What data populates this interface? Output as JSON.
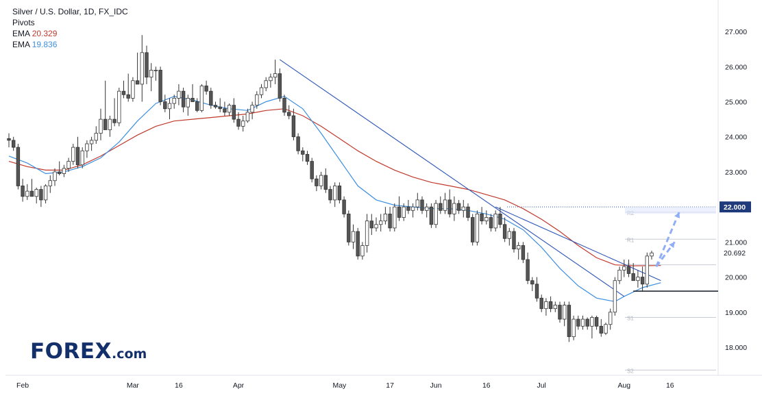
{
  "chart_data": {
    "type": "candlestick",
    "title": "Silver / U.S. Dollar, 1D, FX_IDC",
    "indicators": {
      "pivots_label": "Pivots",
      "ema_fast": {
        "label": "EMA",
        "value": "20.329",
        "color": "#c0392b"
      },
      "ema_slow": {
        "label": "EMA",
        "value": "19.836",
        "color": "#3d8fe0"
      }
    },
    "ylim": [
      17.2,
      27.9
    ],
    "y_ticks": [
      "18.000",
      "19.000",
      "20.000",
      "21.000",
      "22.000",
      "23.000",
      "24.000",
      "25.000",
      "26.000",
      "27.000"
    ],
    "x_ticks": [
      "Feb",
      "Mar",
      "16",
      "Apr",
      "May",
      "17",
      "Jun",
      "16",
      "Jul",
      "Aug",
      "16"
    ],
    "x_tick_index": [
      3,
      27,
      37,
      50,
      72,
      83,
      93,
      104,
      116,
      134,
      144
    ],
    "last_price": "20.692",
    "target_level": "22.000",
    "pivot_levels": [
      {
        "label": "R2",
        "value": 21.85
      },
      {
        "label": "R1",
        "value": 21.08
      },
      {
        "label": "P",
        "value": 20.35
      },
      {
        "label": "S1",
        "value": 18.85
      },
      {
        "label": "S2",
        "value": 17.35
      }
    ],
    "support_level": 19.6,
    "colors": {
      "up": "#ffffff",
      "down": "#555555",
      "wick": "#333333",
      "ema_fast": "#c0392b",
      "ema_slow": "#3d8fe0",
      "trendline": "#2c55b8",
      "target_label_bg": "#1f3a7a",
      "forecast_arrow": "#90aef5"
    },
    "candles": [
      [
        23.95,
        24.1,
        23.7,
        23.9
      ],
      [
        23.9,
        24.0,
        23.6,
        23.7
      ],
      [
        23.7,
        23.8,
        22.5,
        22.6
      ],
      [
        22.6,
        22.8,
        22.15,
        22.3
      ],
      [
        22.3,
        22.65,
        22.2,
        22.45
      ],
      [
        22.45,
        22.8,
        22.3,
        22.3
      ],
      [
        22.3,
        22.55,
        22.1,
        22.5
      ],
      [
        22.5,
        22.6,
        22.0,
        22.2
      ],
      [
        22.2,
        22.65,
        22.1,
        22.6
      ],
      [
        22.6,
        22.9,
        22.4,
        22.75
      ],
      [
        22.75,
        23.1,
        22.6,
        23.0
      ],
      [
        23.0,
        23.3,
        22.9,
        22.95
      ],
      [
        22.95,
        23.2,
        22.85,
        23.1
      ],
      [
        23.1,
        23.4,
        23.0,
        23.3
      ],
      [
        23.3,
        23.8,
        23.2,
        23.7
      ],
      [
        23.7,
        24.0,
        23.1,
        23.2
      ],
      [
        23.2,
        23.7,
        23.1,
        23.6
      ],
      [
        23.6,
        23.9,
        23.4,
        23.8
      ],
      [
        23.8,
        24.0,
        23.6,
        23.9
      ],
      [
        23.9,
        24.3,
        23.8,
        24.1
      ],
      [
        24.1,
        24.8,
        23.9,
        24.5
      ],
      [
        24.5,
        25.6,
        24.3,
        24.2
      ],
      [
        24.2,
        24.6,
        24.0,
        24.5
      ],
      [
        24.5,
        25.1,
        24.3,
        24.4
      ],
      [
        24.4,
        25.4,
        24.3,
        25.3
      ],
      [
        25.3,
        25.6,
        25.1,
        25.2
      ],
      [
        25.2,
        25.8,
        25.0,
        25.1
      ],
      [
        25.1,
        25.7,
        25.0,
        25.6
      ],
      [
        25.6,
        26.4,
        25.5,
        25.5
      ],
      [
        25.5,
        26.9,
        25.0,
        26.4
      ],
      [
        26.4,
        26.6,
        25.5,
        25.7
      ],
      [
        25.7,
        26.1,
        25.3,
        25.9
      ],
      [
        25.9,
        26.0,
        25.6,
        25.9
      ],
      [
        25.9,
        26.0,
        24.9,
        25.0
      ],
      [
        25.0,
        25.2,
        24.7,
        24.8
      ],
      [
        24.8,
        25.1,
        24.5,
        24.95
      ],
      [
        24.95,
        25.2,
        24.8,
        25.1
      ],
      [
        25.1,
        25.5,
        24.9,
        25.3
      ],
      [
        25.3,
        25.4,
        24.7,
        24.85
      ],
      [
        24.85,
        25.2,
        24.6,
        25.1
      ],
      [
        25.1,
        25.5,
        25.0,
        25.0
      ],
      [
        25.0,
        25.1,
        24.7,
        24.75
      ],
      [
        24.75,
        25.5,
        24.7,
        25.45
      ],
      [
        25.45,
        25.6,
        25.2,
        25.3
      ],
      [
        25.3,
        25.4,
        24.8,
        24.9
      ],
      [
        24.9,
        25.0,
        24.8,
        24.85
      ],
      [
        24.85,
        25.1,
        24.7,
        24.8
      ],
      [
        24.8,
        25.0,
        24.6,
        24.7
      ],
      [
        24.7,
        24.95,
        24.6,
        24.9
      ],
      [
        24.9,
        25.1,
        24.4,
        24.5
      ],
      [
        24.5,
        24.7,
        24.2,
        24.3
      ],
      [
        24.3,
        24.6,
        24.15,
        24.45
      ],
      [
        24.45,
        24.8,
        24.4,
        24.7
      ],
      [
        24.7,
        25.0,
        24.5,
        24.9
      ],
      [
        24.9,
        25.3,
        24.8,
        25.2
      ],
      [
        25.2,
        25.5,
        25.1,
        25.4
      ],
      [
        25.4,
        25.7,
        25.3,
        25.6
      ],
      [
        25.6,
        25.8,
        25.4,
        25.7
      ],
      [
        25.7,
        26.2,
        25.5,
        25.8
      ],
      [
        25.8,
        25.95,
        25.0,
        25.1
      ],
      [
        25.1,
        25.2,
        24.6,
        24.7
      ],
      [
        24.7,
        24.9,
        24.5,
        24.6
      ],
      [
        24.6,
        24.8,
        23.9,
        24.0
      ],
      [
        24.0,
        24.1,
        23.5,
        23.6
      ],
      [
        23.6,
        23.7,
        23.3,
        23.5
      ],
      [
        23.5,
        23.6,
        23.2,
        23.3
      ],
      [
        23.3,
        23.4,
        22.7,
        22.8
      ],
      [
        22.8,
        22.9,
        22.45,
        22.6
      ],
      [
        22.6,
        23.0,
        22.5,
        22.9
      ],
      [
        22.9,
        23.1,
        22.4,
        22.5
      ],
      [
        22.5,
        22.6,
        22.1,
        22.2
      ],
      [
        22.2,
        22.7,
        22.0,
        22.6
      ],
      [
        22.6,
        22.7,
        22.1,
        22.2
      ],
      [
        22.2,
        22.3,
        21.7,
        21.8
      ],
      [
        21.8,
        21.9,
        20.9,
        21.0
      ],
      [
        21.0,
        21.5,
        20.8,
        21.3
      ],
      [
        21.3,
        21.4,
        20.5,
        20.6
      ],
      [
        20.6,
        21.0,
        20.5,
        20.9
      ],
      [
        20.9,
        21.8,
        20.7,
        21.6
      ],
      [
        21.6,
        21.8,
        21.2,
        21.4
      ],
      [
        21.4,
        21.7,
        21.3,
        21.5
      ],
      [
        21.5,
        21.8,
        21.3,
        21.6
      ],
      [
        21.6,
        22.0,
        21.5,
        21.8
      ],
      [
        21.8,
        22.0,
        21.3,
        21.4
      ],
      [
        21.4,
        22.1,
        21.3,
        22.0
      ],
      [
        22.0,
        22.3,
        21.6,
        21.7
      ],
      [
        21.7,
        22.1,
        21.6,
        22.0
      ],
      [
        22.0,
        22.2,
        21.8,
        21.9
      ],
      [
        21.9,
        22.1,
        21.7,
        22.0
      ],
      [
        22.0,
        22.4,
        21.9,
        22.2
      ],
      [
        22.2,
        22.3,
        21.8,
        21.9
      ],
      [
        21.9,
        22.1,
        21.7,
        22.0
      ],
      [
        22.0,
        22.1,
        21.4,
        21.5
      ],
      [
        21.5,
        22.2,
        21.4,
        22.1
      ],
      [
        22.1,
        22.3,
        21.8,
        21.9
      ],
      [
        21.9,
        22.4,
        21.8,
        22.2
      ],
      [
        22.2,
        22.5,
        21.7,
        21.8
      ],
      [
        21.8,
        22.3,
        21.6,
        22.1
      ],
      [
        22.1,
        22.2,
        21.8,
        21.9
      ],
      [
        21.9,
        22.2,
        21.7,
        22.0
      ],
      [
        22.0,
        22.1,
        21.6,
        21.7
      ],
      [
        21.7,
        21.8,
        20.9,
        21.0
      ],
      [
        21.0,
        21.9,
        20.9,
        21.8
      ],
      [
        21.8,
        22.0,
        21.5,
        21.6
      ],
      [
        21.6,
        21.9,
        21.5,
        21.7
      ],
      [
        21.7,
        21.8,
        21.3,
        21.4
      ],
      [
        21.4,
        21.9,
        21.3,
        21.8
      ],
      [
        21.8,
        22.0,
        21.4,
        21.5
      ],
      [
        21.5,
        21.7,
        21.0,
        21.1
      ],
      [
        21.1,
        21.4,
        20.9,
        21.3
      ],
      [
        21.3,
        21.4,
        20.7,
        20.8
      ],
      [
        20.8,
        21.0,
        20.5,
        20.9
      ],
      [
        20.9,
        21.0,
        20.4,
        20.5
      ],
      [
        20.5,
        20.7,
        19.8,
        19.9
      ],
      [
        19.9,
        20.0,
        19.6,
        19.8
      ],
      [
        19.8,
        20.0,
        19.3,
        19.4
      ],
      [
        19.4,
        19.5,
        19.0,
        19.1
      ],
      [
        19.1,
        19.4,
        18.9,
        19.3
      ],
      [
        19.3,
        19.45,
        19.0,
        19.1
      ],
      [
        19.1,
        19.3,
        19.0,
        19.2
      ],
      [
        19.2,
        19.3,
        18.7,
        18.8
      ],
      [
        18.8,
        19.3,
        18.6,
        19.2
      ],
      [
        19.2,
        19.3,
        18.15,
        18.3
      ],
      [
        18.3,
        18.9,
        18.2,
        18.8
      ],
      [
        18.8,
        18.9,
        18.5,
        18.6
      ],
      [
        18.6,
        18.9,
        18.5,
        18.8
      ],
      [
        18.8,
        18.85,
        18.5,
        18.6
      ],
      [
        18.6,
        18.9,
        18.25,
        18.85
      ],
      [
        18.85,
        18.9,
        18.5,
        18.6
      ],
      [
        18.6,
        18.8,
        18.3,
        18.4
      ],
      [
        18.4,
        18.7,
        18.35,
        18.65
      ],
      [
        18.65,
        19.1,
        18.5,
        19.0
      ],
      [
        19.0,
        20.0,
        18.9,
        19.9
      ],
      [
        19.9,
        20.3,
        19.8,
        20.2
      ],
      [
        20.2,
        20.5,
        20.0,
        20.3
      ],
      [
        20.3,
        20.5,
        20.0,
        20.1
      ],
      [
        20.1,
        20.4,
        19.9,
        19.9
      ],
      [
        19.9,
        20.2,
        19.7,
        20.0
      ],
      [
        20.0,
        20.3,
        19.6,
        19.8
      ],
      [
        19.8,
        20.7,
        19.7,
        20.6
      ],
      [
        20.6,
        20.75,
        20.5,
        20.69
      ]
    ],
    "ema_slow_values": [
      [
        0,
        23.45
      ],
      [
        4,
        23.25
      ],
      [
        8,
        22.95
      ],
      [
        12,
        23.0
      ],
      [
        16,
        23.15
      ],
      [
        20,
        23.4
      ],
      [
        24,
        23.85
      ],
      [
        28,
        24.45
      ],
      [
        32,
        24.95
      ],
      [
        36,
        25.15
      ],
      [
        40,
        25.05
      ],
      [
        44,
        24.9
      ],
      [
        48,
        24.8
      ],
      [
        52,
        24.75
      ],
      [
        56,
        25.0
      ],
      [
        60,
        25.15
      ],
      [
        64,
        24.8
      ],
      [
        68,
        24.1
      ],
      [
        72,
        23.35
      ],
      [
        76,
        22.6
      ],
      [
        80,
        22.2
      ],
      [
        84,
        22.05
      ],
      [
        88,
        22.0
      ],
      [
        92,
        21.95
      ],
      [
        96,
        21.95
      ],
      [
        100,
        21.9
      ],
      [
        104,
        21.8
      ],
      [
        108,
        21.65
      ],
      [
        112,
        21.35
      ],
      [
        116,
        20.85
      ],
      [
        120,
        20.25
      ],
      [
        124,
        19.75
      ],
      [
        128,
        19.4
      ],
      [
        132,
        19.3
      ],
      [
        134,
        19.45
      ],
      [
        138,
        19.7
      ],
      [
        142,
        19.84
      ]
    ],
    "ema_fast_values": [
      [
        0,
        23.3
      ],
      [
        4,
        23.15
      ],
      [
        8,
        23.05
      ],
      [
        12,
        23.05
      ],
      [
        16,
        23.2
      ],
      [
        20,
        23.45
      ],
      [
        24,
        23.75
      ],
      [
        28,
        24.05
      ],
      [
        32,
        24.3
      ],
      [
        36,
        24.45
      ],
      [
        40,
        24.5
      ],
      [
        44,
        24.55
      ],
      [
        48,
        24.6
      ],
      [
        52,
        24.65
      ],
      [
        56,
        24.75
      ],
      [
        60,
        24.8
      ],
      [
        64,
        24.6
      ],
      [
        68,
        24.3
      ],
      [
        72,
        23.95
      ],
      [
        76,
        23.6
      ],
      [
        80,
        23.3
      ],
      [
        84,
        23.05
      ],
      [
        88,
        22.85
      ],
      [
        92,
        22.7
      ],
      [
        96,
        22.6
      ],
      [
        100,
        22.5
      ],
      [
        104,
        22.35
      ],
      [
        108,
        22.2
      ],
      [
        112,
        21.95
      ],
      [
        116,
        21.65
      ],
      [
        120,
        21.3
      ],
      [
        124,
        20.9
      ],
      [
        128,
        20.55
      ],
      [
        132,
        20.35
      ],
      [
        136,
        20.32
      ],
      [
        142,
        20.33
      ]
    ],
    "trendlines": [
      {
        "points": [
          [
            59,
            26.2
          ],
          [
            134,
            19.45
          ]
        ]
      },
      {
        "points": [
          [
            106,
            22.0
          ],
          [
            142,
            19.9
          ]
        ]
      }
    ],
    "forecast_arrows": [
      {
        "points": [
          [
            141,
            20.3
          ],
          [
            145,
            21.0
          ]
        ]
      },
      {
        "points": [
          [
            141,
            20.3
          ],
          [
            146,
            21.85
          ]
        ]
      }
    ]
  }
}
